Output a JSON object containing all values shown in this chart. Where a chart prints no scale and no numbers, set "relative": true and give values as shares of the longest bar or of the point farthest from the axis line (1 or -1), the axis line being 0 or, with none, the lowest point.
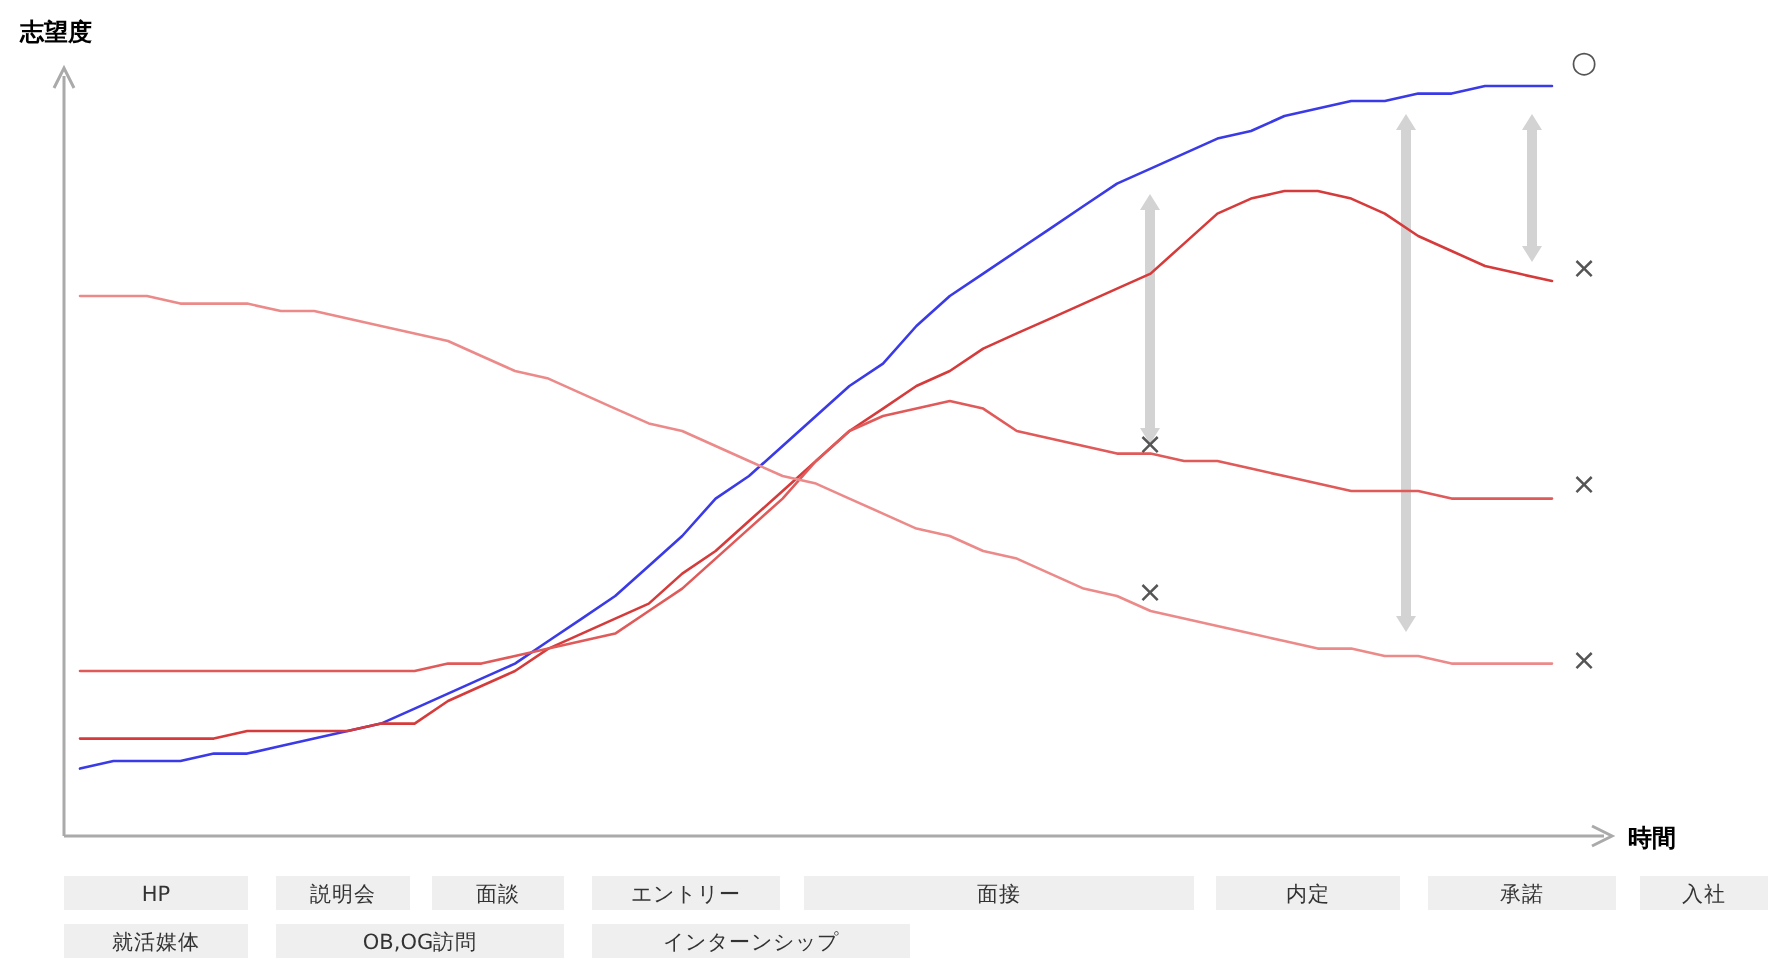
{
  "chart_data": {
    "type": "line",
    "relative": true,
    "ylabel": "志望度",
    "xlabel": "時間",
    "grid": false,
    "marker": "none",
    "categories": [
      null,
      null,
      null,
      null,
      null,
      null,
      null,
      null,
      null,
      null,
      null,
      null,
      null,
      null,
      null,
      null,
      null,
      null,
      null,
      null,
      null,
      null,
      null,
      null,
      null,
      null,
      null,
      null,
      null,
      null,
      null,
      null,
      null,
      null,
      null,
      null,
      null,
      null,
      null,
      null,
      null,
      null,
      null,
      null,
      null
    ],
    "series": [
      {
        "color": "#3a3ae6",
        "values": [
          0.09,
          0.1,
          0.1,
          0.1,
          0.11,
          0.11,
          0.12,
          0.13,
          0.14,
          0.15,
          0.17,
          0.19,
          0.21,
          0.23,
          0.26,
          0.29,
          0.32,
          0.36,
          0.4,
          0.45,
          0.48,
          0.52,
          0.56,
          0.6,
          0.63,
          0.68,
          0.72,
          0.75,
          0.78,
          0.81,
          0.84,
          0.87,
          0.89,
          0.91,
          0.93,
          0.94,
          0.96,
          0.97,
          0.98,
          0.98,
          0.99,
          0.99,
          1.0,
          1.0,
          1.0
        ]
      },
      {
        "color": "#d63b3b",
        "values": [
          0.13,
          0.13,
          0.13,
          0.13,
          0.13,
          0.14,
          0.14,
          0.14,
          0.14,
          0.15,
          0.15,
          0.18,
          0.2,
          0.22,
          0.25,
          0.27,
          0.29,
          0.31,
          0.35,
          0.38,
          0.42,
          0.46,
          0.5,
          0.54,
          0.57,
          0.6,
          0.62,
          0.65,
          0.67,
          0.69,
          0.71,
          0.73,
          0.75,
          0.79,
          0.83,
          0.85,
          0.86,
          0.86,
          0.85,
          0.83,
          0.8,
          0.78,
          0.76,
          0.75,
          0.74
        ]
      },
      {
        "color": "#e05a5a",
        "values": [
          0.22,
          0.22,
          0.22,
          0.22,
          0.22,
          0.22,
          0.22,
          0.22,
          0.22,
          0.22,
          0.22,
          0.23,
          0.23,
          0.24,
          0.25,
          0.26,
          0.27,
          0.3,
          0.33,
          0.37,
          0.41,
          0.45,
          0.5,
          0.54,
          0.56,
          0.57,
          0.58,
          0.57,
          0.54,
          0.53,
          0.52,
          0.51,
          0.51,
          0.5,
          0.5,
          0.49,
          0.48,
          0.47,
          0.46,
          0.46,
          0.46,
          0.45,
          0.45,
          0.45,
          0.45
        ]
      },
      {
        "color": "#ec8a8a",
        "values": [
          0.72,
          0.72,
          0.72,
          0.71,
          0.71,
          0.71,
          0.7,
          0.7,
          0.69,
          0.68,
          0.67,
          0.66,
          0.64,
          0.62,
          0.61,
          0.59,
          0.57,
          0.55,
          0.54,
          0.52,
          0.5,
          0.48,
          0.47,
          0.45,
          0.43,
          0.41,
          0.4,
          0.38,
          0.37,
          0.35,
          0.33,
          0.32,
          0.3,
          0.29,
          0.28,
          0.27,
          0.26,
          0.25,
          0.25,
          0.24,
          0.24,
          0.23,
          0.23,
          0.23,
          0.23
        ]
      }
    ],
    "annotations": [
      "○",
      "×",
      "×",
      "×",
      "×",
      "×",
      "HP",
      "説明会",
      "面談",
      "エントリー",
      "面接",
      "内定",
      "承諾",
      "入社",
      "就活媒体",
      "OB,OG訪問",
      "インターンシップ"
    ]
  }
}
